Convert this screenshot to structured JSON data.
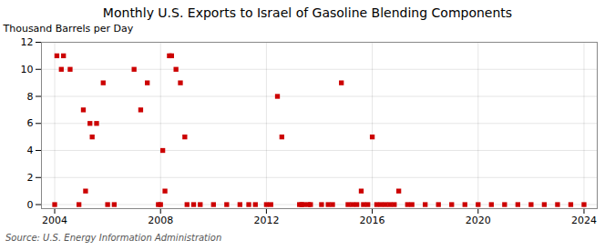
{
  "chart_data": {
    "type": "scatter",
    "title": "Monthly U.S. Exports to Israel of Gasoline Blending Components",
    "ylabel": "Thousand Barrels per Day",
    "source": "Source: U.S. Energy Information Administration",
    "color": "#cc0000",
    "marker": "square",
    "grid": true,
    "xlim": [
      2003.5,
      2024.5
    ],
    "xticks": [
      2004,
      2008,
      2012,
      2016,
      2020,
      2024
    ],
    "ylim": [
      -0.3,
      12
    ],
    "yticks": [
      0,
      2,
      4,
      6,
      8,
      10,
      12
    ],
    "x": [
      2004.0,
      2004.083,
      2004.25,
      2004.333,
      2004.583,
      2004.917,
      2005.083,
      2005.167,
      2005.333,
      2005.417,
      2005.583,
      2005.833,
      2006.0,
      2006.25,
      2007.0,
      2007.25,
      2007.5,
      2007.917,
      2008.0,
      2008.083,
      2008.167,
      2008.333,
      2008.417,
      2008.583,
      2008.75,
      2008.917,
      2009.0,
      2009.25,
      2009.5,
      2010.0,
      2010.5,
      2011.0,
      2011.333,
      2011.583,
      2012.0,
      2012.167,
      2012.417,
      2012.583,
      2013.25,
      2013.333,
      2013.417,
      2013.583,
      2013.667,
      2014.083,
      2014.333,
      2014.5,
      2014.833,
      2015.083,
      2015.25,
      2015.417,
      2015.583,
      2015.667,
      2015.833,
      2016.0,
      2016.167,
      2016.333,
      2016.5,
      2016.667,
      2016.833,
      2017.0,
      2017.333,
      2017.5,
      2018.0,
      2018.5,
      2019.0,
      2019.5,
      2020.0,
      2020.5,
      2021.0,
      2021.5,
      2022.0,
      2022.5,
      2023.0,
      2023.5,
      2024.0
    ],
    "values": [
      0,
      11,
      10,
      11,
      10,
      0,
      7,
      1,
      6,
      5,
      6,
      9,
      0,
      0,
      10,
      7,
      9,
      0,
      0,
      4,
      1,
      11,
      11,
      10,
      9,
      5,
      0,
      0,
      0,
      0,
      0,
      0,
      0,
      0,
      0,
      0,
      8,
      5,
      0,
      0,
      0,
      0,
      0,
      0,
      0,
      0,
      9,
      0,
      0,
      0,
      1,
      0,
      0,
      5,
      0,
      0,
      0,
      0,
      0,
      1,
      0,
      0,
      0,
      0,
      0,
      0,
      0,
      0,
      0,
      0,
      0,
      0,
      0,
      0,
      0
    ]
  }
}
